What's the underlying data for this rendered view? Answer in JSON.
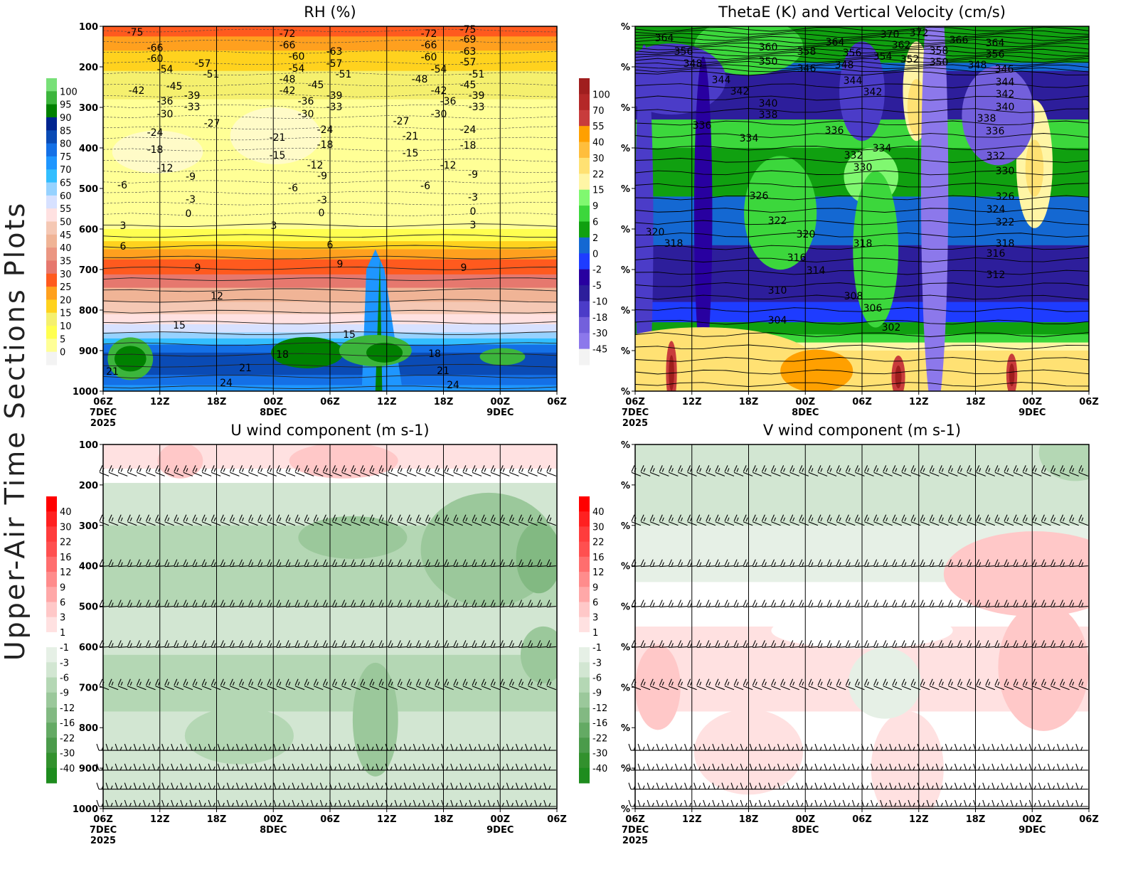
{
  "figure_title": "Upper-Air Time Sections Plots",
  "x_tick_labels": [
    "06Z",
    "12Z",
    "18Z",
    "00Z",
    "06Z",
    "12Z",
    "18Z",
    "00Z",
    "06Z"
  ],
  "x_date_labels": [
    {
      "tick": 0,
      "lines": [
        "7DEC",
        "2025"
      ]
    },
    {
      "tick": 3,
      "lines": [
        "8DEC"
      ]
    },
    {
      "tick": 7,
      "lines": [
        "9DEC"
      ]
    }
  ],
  "chart_data": [
    {
      "type": "heatmap",
      "title": "RH (%)",
      "y_tick_labels": [
        "100",
        "200",
        "300",
        "400",
        "500",
        "600",
        "700",
        "800",
        "900",
        "1000"
      ],
      "ylim": [
        1000,
        100
      ],
      "colorbar_labels": [
        "100",
        "95",
        "90",
        "85",
        "80",
        "75",
        "70",
        "65",
        "60",
        "55",
        "50",
        "45",
        "40",
        "35",
        "30",
        "25",
        "20",
        "15",
        "10",
        "5",
        "0"
      ],
      "colorbar_colors": [
        "#78e078",
        "#3cb53c",
        "#008000",
        "#00248f",
        "#0a4bb5",
        "#1470e6",
        "#1e96ff",
        "#32beff",
        "#96d2ff",
        "#d7e1ff",
        "#ffe1e1",
        "#f5c8b4",
        "#f0b496",
        "#eb9682",
        "#e6786e",
        "#ff5a1e",
        "#ffa01e",
        "#ffd21e",
        "#f5f06e",
        "#ffff50",
        "#ffff96",
        "#f3f3f3"
      ],
      "contour_labels": [
        "-75",
        "-66",
        "-60",
        "-54",
        "-57",
        "-51",
        "-45",
        "-42",
        "-39",
        "-36",
        "-33",
        "-30",
        "-27",
        "-24",
        "-18",
        "-12",
        "-9",
        "-6",
        "-3",
        "0",
        "3",
        "6",
        "9",
        "12",
        "15",
        "18",
        "21",
        "24",
        "21",
        "-72",
        "-66",
        "-60",
        "-54",
        "-48",
        "-42",
        "-45",
        "-36",
        "-30",
        "-21",
        "-15",
        "-12",
        "-9",
        "-6",
        "-3",
        "0",
        "3",
        "6",
        "9",
        "15",
        "-63",
        "-57",
        "-51",
        "-39",
        "-33",
        "-24",
        "-18",
        "-72",
        "-66",
        "-60",
        "-54",
        "-48",
        "-42",
        "-36",
        "-30",
        "-27",
        "-21",
        "-15",
        "-12",
        "-6",
        "18",
        "21",
        "24",
        "-75",
        "-69",
        "-63",
        "-57",
        "-51",
        "-45",
        "-39",
        "-33",
        "-24",
        "-18",
        "-9",
        "-3",
        "0",
        "3",
        "9"
      ]
    },
    {
      "type": "heatmap",
      "title": "ThetaE (K) and Vertical Velocity (cm/s)",
      "y_tick_labels": [
        "%",
        "%",
        "%",
        "%",
        "%",
        "%",
        "%",
        "%",
        "%",
        "%"
      ],
      "colorbar_labels": [
        "100",
        "70",
        "55",
        "40",
        "30",
        "22",
        "15",
        "9",
        "6",
        "2",
        "0",
        "-2",
        "-5",
        "-10",
        "-18",
        "-30",
        "-45"
      ],
      "colorbar_colors": [
        "#a01e1e",
        "#b42828",
        "#c83c3c",
        "#ffa000",
        "#ffbe3c",
        "#ffe173",
        "#fff5a5",
        "#80f870",
        "#3cd73c",
        "#10a010",
        "#1468d2",
        "#1e3cff",
        "#2800a0",
        "#2d1e9b",
        "#4b3cc8",
        "#7360dc",
        "#8c78eb",
        "#f3f3f3"
      ],
      "contour_labels": [
        "364",
        "356",
        "348",
        "360",
        "350",
        "358",
        "346",
        "364",
        "356",
        "348",
        "354",
        "370",
        "372",
        "362",
        "352",
        "358",
        "350",
        "366",
        "364",
        "356",
        "348",
        "346",
        "344",
        "342",
        "344",
        "342",
        "344",
        "342",
        "340",
        "340",
        "338",
        "336",
        "334",
        "336",
        "338",
        "336",
        "332",
        "334",
        "330",
        "332",
        "330",
        "326",
        "326",
        "324",
        "322",
        "322",
        "320",
        "318",
        "320",
        "318",
        "318",
        "316",
        "314",
        "316",
        "312",
        "310",
        "308",
        "306",
        "304",
        "302"
      ]
    },
    {
      "type": "heatmap",
      "title": "U wind component (m s-1)",
      "y_tick_labels": [
        "100",
        "200",
        "300",
        "400",
        "500",
        "600",
        "700",
        "800",
        "900",
        "1000"
      ],
      "ylim": [
        1000,
        100
      ],
      "colorbar_labels": [
        "40",
        "30",
        "22",
        "16",
        "12",
        "9",
        "6",
        "3",
        "1",
        "-1",
        "-3",
        "-6",
        "-9",
        "-12",
        "-16",
        "-22",
        "-30",
        "-40"
      ],
      "colorbar_colors": [
        "#ff0000",
        "#ff2020",
        "#ff3c3c",
        "#ff5050",
        "#ff6e6e",
        "#ff8c8c",
        "#ffa8a8",
        "#ffc8c8",
        "#ffe1e1",
        "#ffffff",
        "#e6f0e6",
        "#d2e6d2",
        "#b4d7b4",
        "#9bc89b",
        "#82b982",
        "#64aa64",
        "#4b9b4b",
        "#32912d",
        "#1e8c1e"
      ]
    },
    {
      "type": "heatmap",
      "title": "V wind component (m s-1)",
      "y_tick_labels": [
        "%",
        "%",
        "%",
        "%",
        "%",
        "%",
        "%",
        "%",
        "%",
        "%"
      ],
      "colorbar_labels": [
        "40",
        "30",
        "22",
        "16",
        "12",
        "9",
        "6",
        "3",
        "1",
        "-1",
        "-3",
        "-6",
        "-9",
        "-12",
        "-16",
        "-22",
        "-30",
        "-40"
      ],
      "colorbar_colors": [
        "#ff0000",
        "#ff2020",
        "#ff3c3c",
        "#ff5050",
        "#ff6e6e",
        "#ff8c8c",
        "#ffa8a8",
        "#ffc8c8",
        "#ffe1e1",
        "#ffffff",
        "#e6f0e6",
        "#d2e6d2",
        "#b4d7b4",
        "#9bc89b",
        "#82b982",
        "#64aa64",
        "#4b9b4b",
        "#32912d",
        "#1e8c1e"
      ]
    }
  ]
}
